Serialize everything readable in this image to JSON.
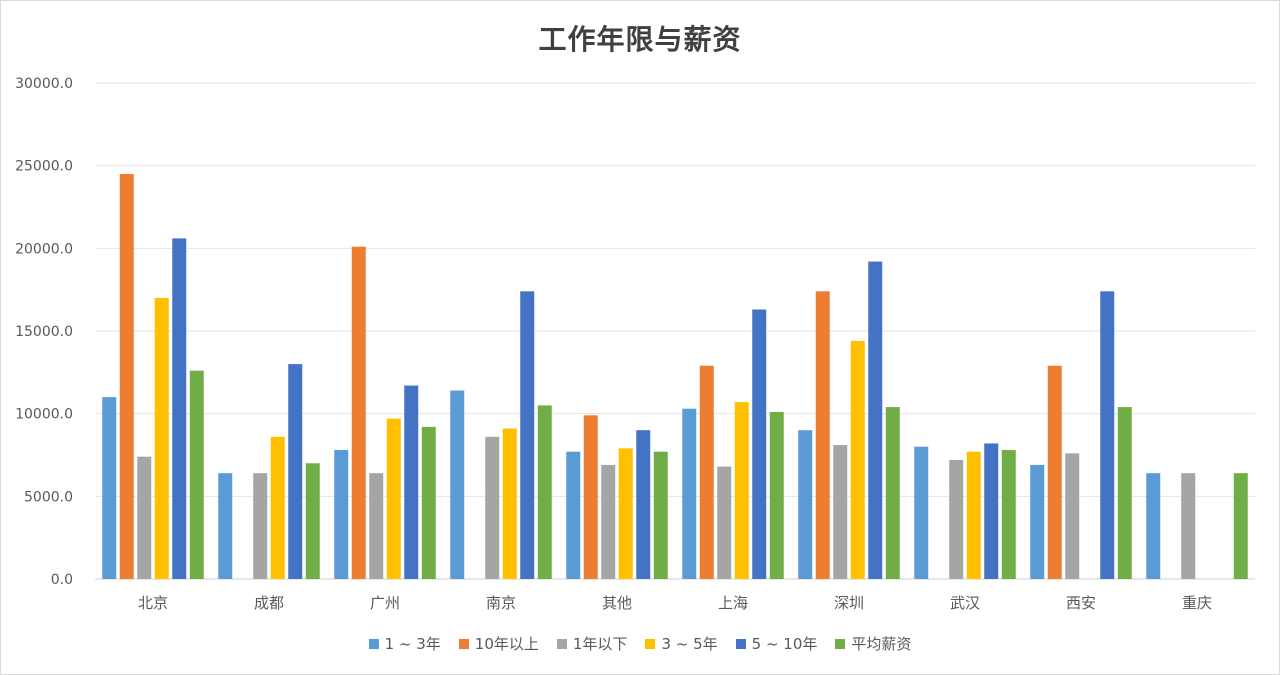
{
  "chart_data": {
    "type": "bar",
    "title": "工作年限与薪资",
    "xlabel": "",
    "ylabel": "",
    "ylim": [
      0,
      30000
    ],
    "yticks": [
      "0.0",
      "5000.0",
      "10000.0",
      "15000.0",
      "20000.0",
      "25000.0",
      "30000.0"
    ],
    "grid": true,
    "legend_position": "bottom",
    "categories": [
      "北京",
      "成都",
      "广州",
      "南京",
      "其他",
      "上海",
      "深圳",
      "武汉",
      "西安",
      "重庆"
    ],
    "series": [
      {
        "name": "1 ~ 3年",
        "color": "#5B9BD5",
        "values": [
          11000,
          6400,
          7800,
          11400,
          7700,
          10300,
          9000,
          8000,
          6900,
          6400
        ]
      },
      {
        "name": "10年以上",
        "color": "#ED7D31",
        "values": [
          24500,
          0,
          20100,
          0,
          9900,
          12900,
          17400,
          0,
          12900,
          0
        ]
      },
      {
        "name": "1年以下",
        "color": "#A5A5A5",
        "values": [
          7400,
          6400,
          6400,
          8600,
          6900,
          6800,
          8100,
          7200,
          7600,
          6400
        ]
      },
      {
        "name": "3 ~ 5年",
        "color": "#FFC000",
        "values": [
          17000,
          8600,
          9700,
          9100,
          7900,
          10700,
          14400,
          7700,
          0,
          0
        ]
      },
      {
        "name": "5 ~ 10年",
        "color": "#4472C4",
        "values": [
          20600,
          13000,
          11700,
          17400,
          9000,
          16300,
          19200,
          8200,
          17400,
          0
        ]
      },
      {
        "name": "平均薪资",
        "color": "#70AD47",
        "values": [
          12600,
          7000,
          9200,
          10500,
          7700,
          10100,
          10400,
          7800,
          10400,
          6400
        ]
      }
    ]
  }
}
